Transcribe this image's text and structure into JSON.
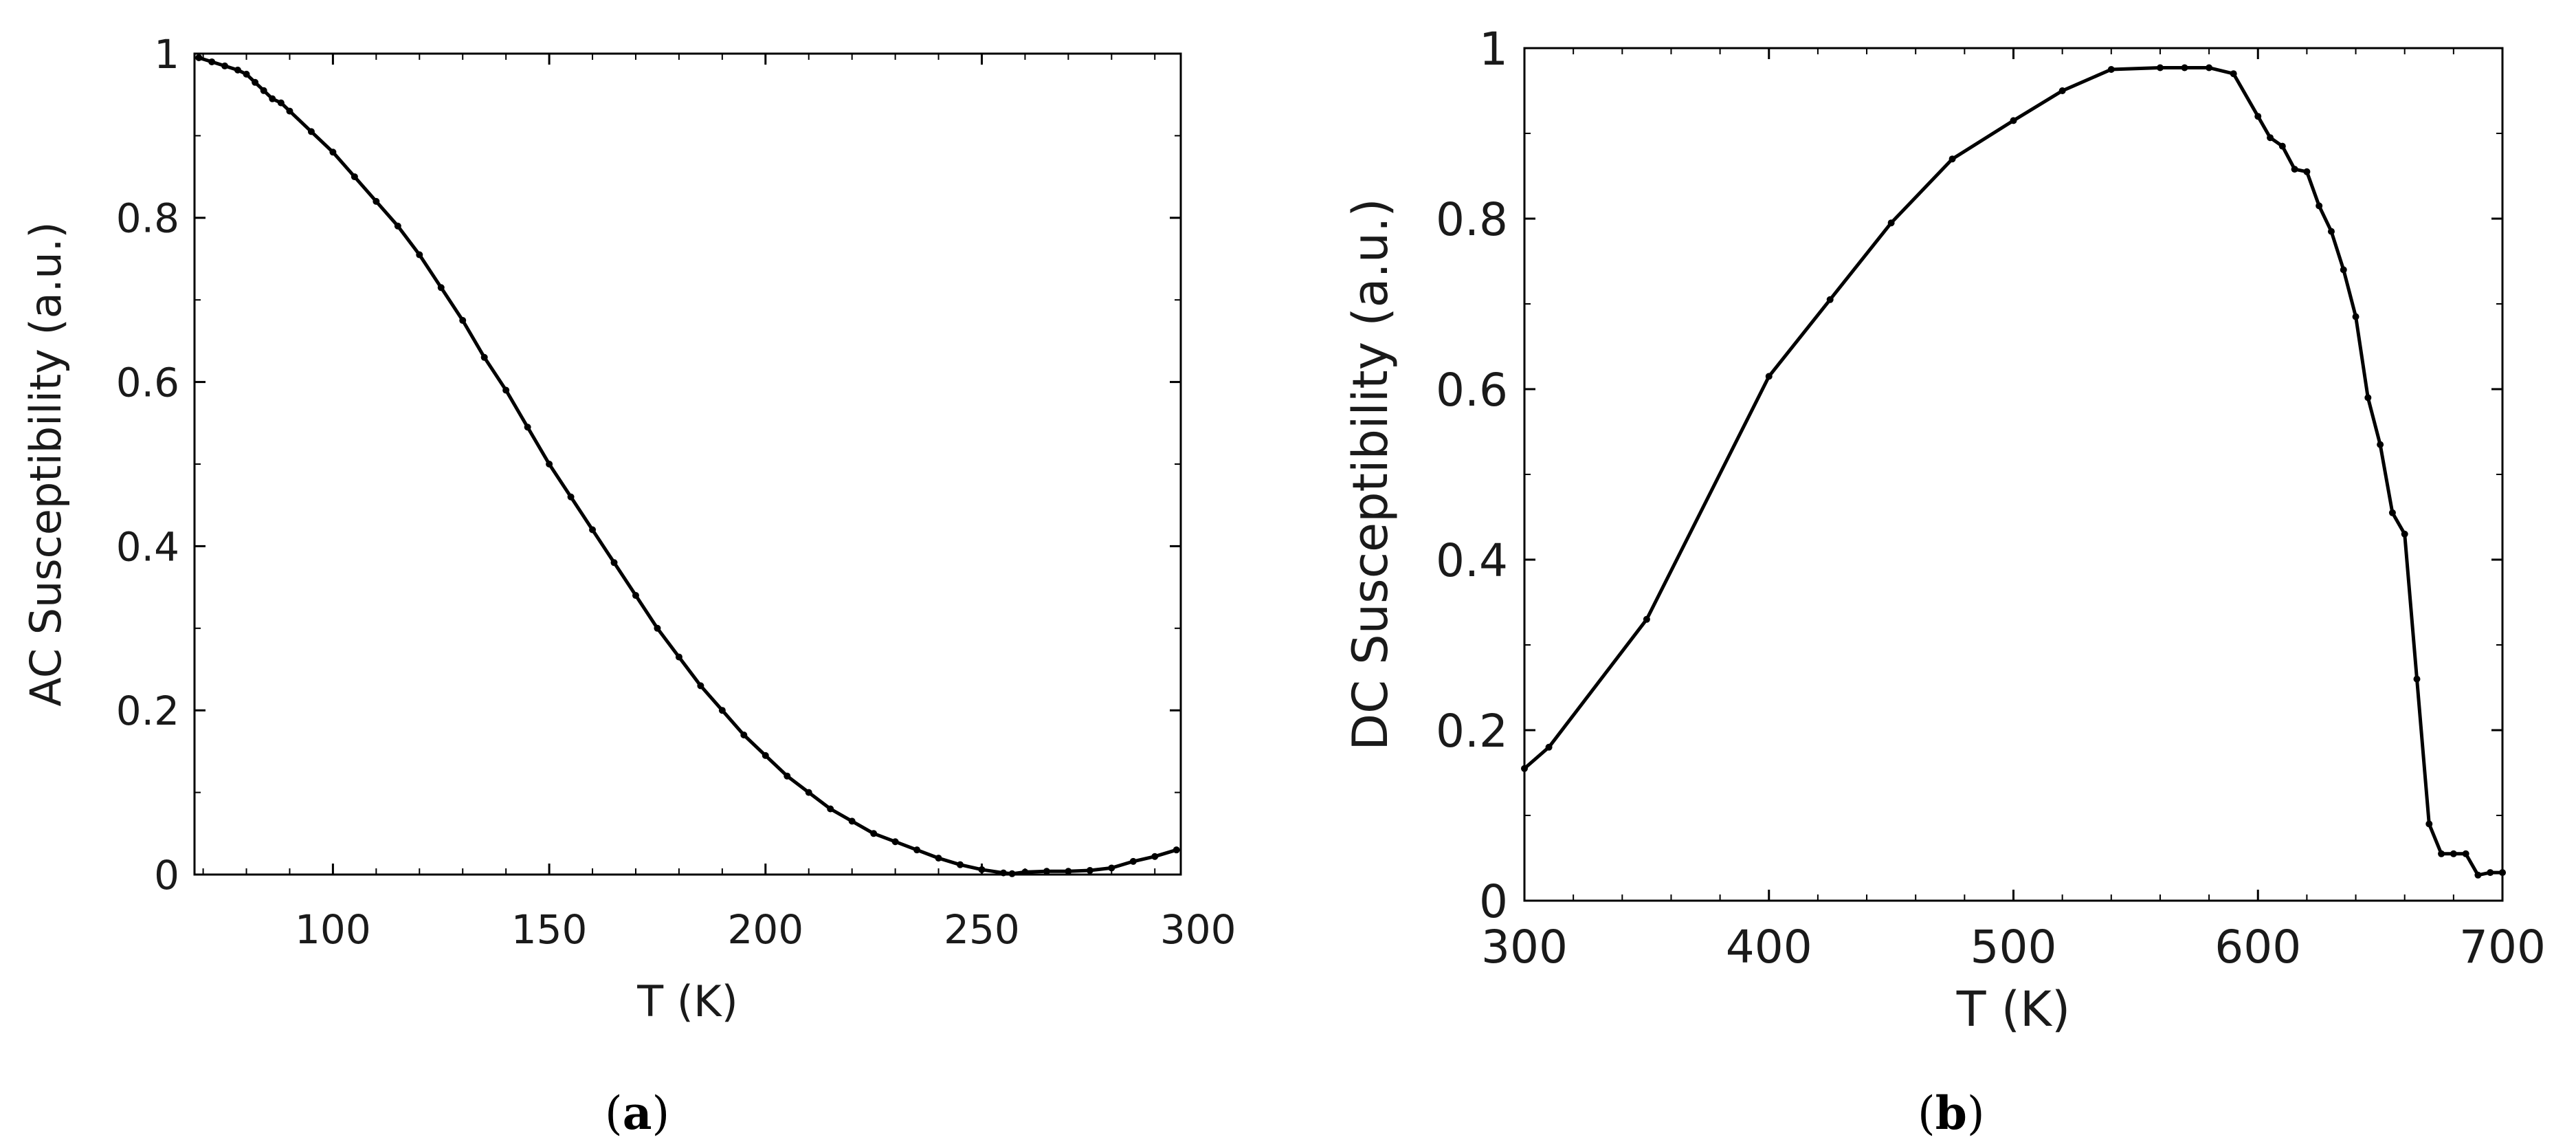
{
  "chart_data": [
    {
      "type": "line",
      "panel": "a",
      "caption": "a",
      "xlabel": "T (K)",
      "ylabel": "AC Susceptibility (a.u.)",
      "xlim": [
        68,
        296
      ],
      "ylim": [
        0,
        1
      ],
      "xticks": [
        100,
        150,
        200,
        250,
        300
      ],
      "yticks": [
        0,
        0.2,
        0.4,
        0.6,
        0.8,
        1
      ],
      "xtick_labels": [
        "100",
        "150",
        "200",
        "250",
        "300"
      ],
      "ytick_labels": [
        "0",
        "0.2",
        "0.4",
        "0.6",
        "0.8",
        "1"
      ],
      "series": [
        {
          "name": "AC Susceptibility",
          "x": [
            69,
            72,
            75,
            78,
            80,
            82,
            84,
            86,
            88,
            90,
            95,
            100,
            105,
            110,
            115,
            120,
            125,
            130,
            135,
            140,
            145,
            150,
            155,
            160,
            165,
            170,
            175,
            180,
            185,
            190,
            195,
            200,
            205,
            210,
            215,
            220,
            225,
            230,
            235,
            240,
            245,
            250,
            255,
            257,
            260,
            265,
            270,
            275,
            280,
            285,
            290,
            295
          ],
          "y": [
            0.995,
            0.99,
            0.985,
            0.98,
            0.975,
            0.965,
            0.955,
            0.945,
            0.94,
            0.93,
            0.905,
            0.88,
            0.85,
            0.82,
            0.79,
            0.755,
            0.715,
            0.675,
            0.63,
            0.59,
            0.545,
            0.5,
            0.46,
            0.42,
            0.38,
            0.34,
            0.3,
            0.265,
            0.23,
            0.2,
            0.17,
            0.145,
            0.12,
            0.1,
            0.08,
            0.065,
            0.05,
            0.04,
            0.03,
            0.02,
            0.012,
            0.006,
            0.002,
            0.001,
            0.003,
            0.004,
            0.004,
            0.005,
            0.008,
            0.016,
            0.022,
            0.03
          ]
        }
      ]
    },
    {
      "type": "line",
      "panel": "b",
      "caption": "b",
      "xlabel": "T (K)",
      "ylabel": "DC Susceptibility (a.u.)",
      "xlim": [
        300,
        700
      ],
      "ylim": [
        0,
        1
      ],
      "xticks": [
        300,
        400,
        500,
        600,
        700
      ],
      "yticks": [
        0,
        0.2,
        0.4,
        0.6,
        0.8,
        1
      ],
      "xtick_labels": [
        "300",
        "400",
        "500",
        "600",
        "700"
      ],
      "ytick_labels": [
        "0",
        "0.2",
        "0.4",
        "0.6",
        "0.8",
        "1"
      ],
      "series": [
        {
          "name": "DC Susceptibility",
          "x": [
            300,
            310,
            350,
            400,
            425,
            450,
            475,
            500,
            520,
            540,
            560,
            570,
            580,
            590,
            600,
            605,
            610,
            615,
            620,
            625,
            630,
            635,
            640,
            645,
            650,
            655,
            660,
            665,
            670,
            675,
            680,
            685,
            690,
            695,
            700
          ],
          "y": [
            0.155,
            0.18,
            0.33,
            0.615,
            0.705,
            0.795,
            0.87,
            0.915,
            0.95,
            0.975,
            0.977,
            0.977,
            0.977,
            0.97,
            0.92,
            0.895,
            0.885,
            0.858,
            0.855,
            0.815,
            0.785,
            0.74,
            0.685,
            0.59,
            0.535,
            0.455,
            0.43,
            0.26,
            0.09,
            0.055,
            0.055,
            0.055,
            0.03,
            0.033,
            0.033
          ]
        }
      ]
    }
  ]
}
